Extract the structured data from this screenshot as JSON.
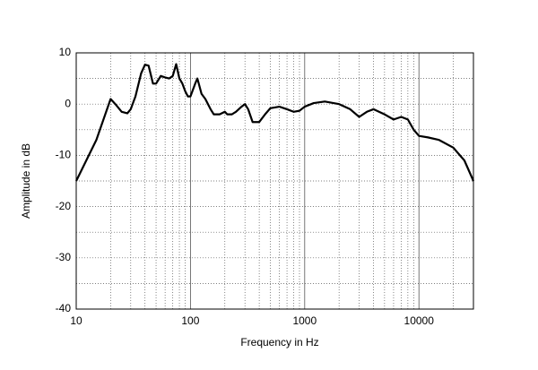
{
  "chart_data": {
    "type": "line",
    "x_label": "Frequency in Hz",
    "y_label": "Amplitude in dB",
    "xscale": "log",
    "xlim": [
      10,
      30000
    ],
    "ylim": [
      -40,
      10
    ],
    "xticks": [
      10,
      100,
      1000,
      10000
    ],
    "yticks": [
      10,
      0,
      -10,
      -20,
      -30,
      -40
    ],
    "x_minor_grid": [
      20,
      30,
      40,
      50,
      60,
      70,
      80,
      90,
      200,
      300,
      400,
      500,
      600,
      700,
      800,
      900,
      2000,
      3000,
      4000,
      5000,
      6000,
      7000,
      8000,
      9000,
      20000
    ],
    "y_minor_grid": [
      5,
      -5,
      -15,
      -25,
      -35
    ],
    "grid": true,
    "x": [
      10,
      15,
      20,
      22,
      25,
      28,
      30,
      33,
      37,
      40,
      43,
      47,
      50,
      55,
      60,
      65,
      70,
      75,
      80,
      85,
      90,
      95,
      100,
      110,
      115,
      125,
      135,
      150,
      160,
      180,
      200,
      210,
      230,
      250,
      280,
      300,
      320,
      350,
      400,
      450,
      500,
      600,
      700,
      800,
      900,
      1000,
      1200,
      1500,
      2000,
      2500,
      3000,
      3500,
      4000,
      5000,
      6000,
      7000,
      8000,
      9000,
      10000,
      12000,
      15000,
      20000,
      25000,
      30000
    ],
    "series": [
      {
        "color": "#000000",
        "values": [
          -15,
          -7,
          1,
          0,
          -1.5,
          -1.8,
          -1,
          1.5,
          6,
          7.7,
          7.5,
          4,
          4,
          5.5,
          5.2,
          5,
          5.5,
          7.8,
          5,
          4,
          2.5,
          1.5,
          1.5,
          4,
          5,
          2,
          1,
          -1,
          -2,
          -2,
          -1.5,
          -2,
          -2,
          -1.5,
          -0.5,
          0,
          -1,
          -3.5,
          -3.5,
          -2,
          -0.8,
          -0.5,
          -1,
          -1.5,
          -1.3,
          -0.5,
          0.2,
          0.5,
          0,
          -1,
          -2.5,
          -1.5,
          -1,
          -2,
          -3,
          -2.5,
          -3,
          -5,
          -6.2,
          -6.5,
          -7,
          -8.5,
          -11,
          -15
        ]
      }
    ]
  }
}
